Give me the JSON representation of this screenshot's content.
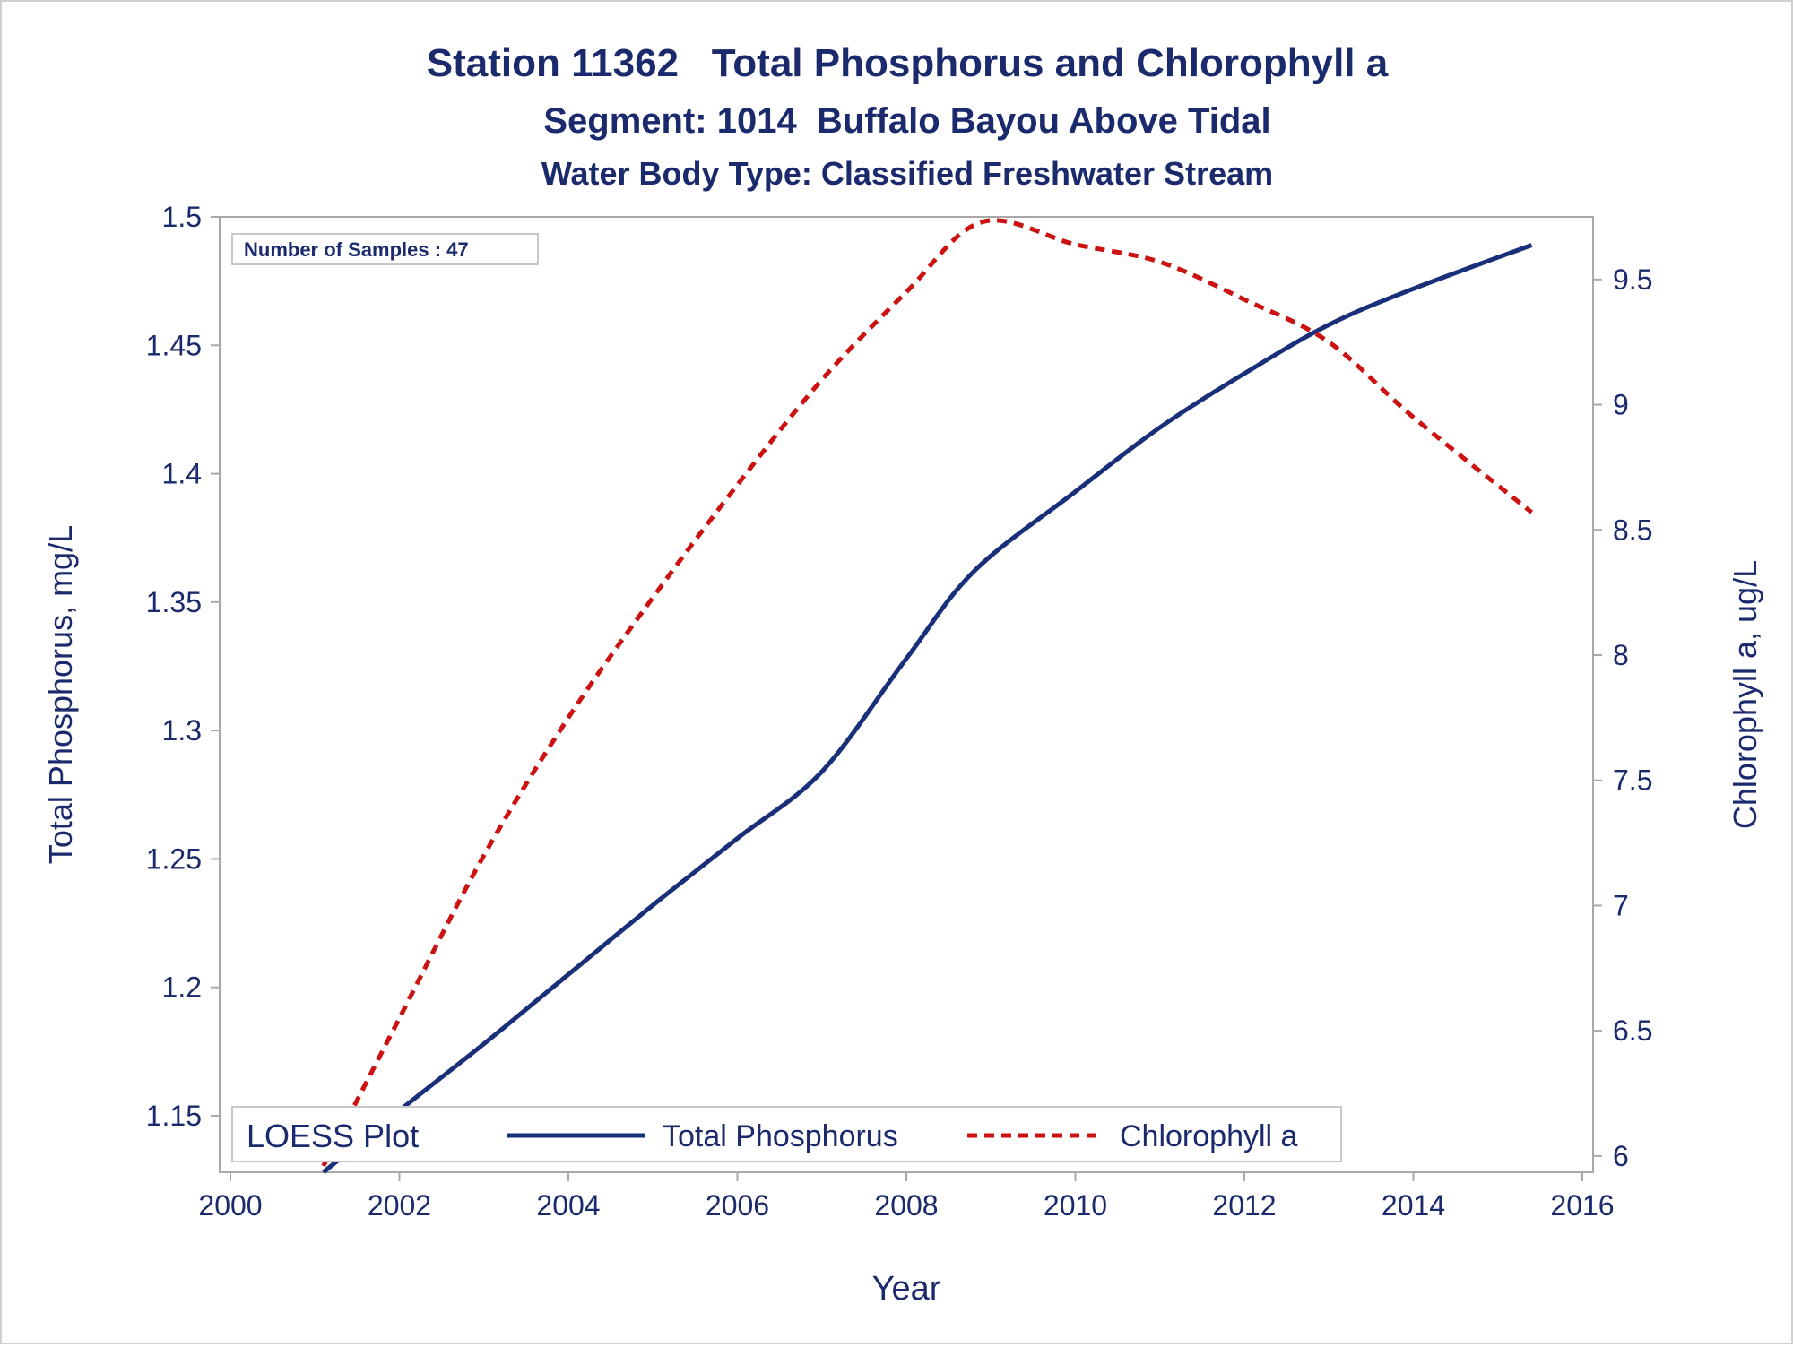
{
  "chart_data": {
    "type": "line",
    "title": "Station 11362   Total Phosphorus and Chlorophyll a",
    "subtitle": "Segment: 1014  Buffalo Bayou Above Tidal",
    "subtitle2": "Water Body Type: Classified Freshwater Stream",
    "xlabel": "Year",
    "ylabel": "Total Phosphorus, mg/L",
    "y2label": "Chlorophyll a, ug/L",
    "xlim": [
      2000,
      2016
    ],
    "ylim": [
      1.128,
      1.5
    ],
    "y2lim": [
      5.935,
      9.75
    ],
    "xticks": [
      "2000",
      "2002",
      "2004",
      "2006",
      "2008",
      "2010",
      "2012",
      "2014",
      "2016"
    ],
    "yticks": [
      "1.15",
      "1.2",
      "1.25",
      "1.3",
      "1.35",
      "1.4",
      "1.45",
      "1.5"
    ],
    "y2ticks": [
      "6",
      "6.5",
      "7",
      "7.5",
      "8",
      "8.5",
      "9",
      "9.5"
    ],
    "grid": false,
    "annotation": "Number of Samples : 47",
    "legend": {
      "title": "LOESS Plot",
      "position": "bottom-inside",
      "items": [
        "Total Phosphorus",
        "Chlorophyll a"
      ]
    },
    "colors": {
      "total_phosphorus": "#1a2f7a",
      "chlorophyll_a": "#cc1111",
      "text": "#1a2a6c"
    },
    "series": [
      {
        "name": "Total Phosphorus",
        "axis": "left",
        "style": "solid",
        "x": [
          2001.1,
          2002.0,
          2003.0,
          2004.0,
          2005.0,
          2006.0,
          2007.0,
          2008.0,
          2008.8,
          2010.0,
          2011.0,
          2012.0,
          2013.0,
          2014.0,
          2015.4
        ],
        "values": [
          1.128,
          1.152,
          1.178,
          1.205,
          1.232,
          1.258,
          1.284,
          1.328,
          1.362,
          1.393,
          1.418,
          1.439,
          1.458,
          1.472,
          1.489
        ]
      },
      {
        "name": "Chlorophyll a",
        "axis": "right",
        "style": "dashed",
        "x": [
          2001.1,
          2002.0,
          2003.0,
          2004.0,
          2005.0,
          2006.0,
          2007.0,
          2008.0,
          2008.9,
          2010.0,
          2011.0,
          2012.0,
          2013.0,
          2014.0,
          2015.4
        ],
        "values": [
          5.96,
          6.55,
          7.2,
          7.75,
          8.23,
          8.68,
          9.1,
          9.45,
          9.73,
          9.64,
          9.57,
          9.42,
          9.25,
          8.95,
          8.57
        ]
      }
    ]
  }
}
